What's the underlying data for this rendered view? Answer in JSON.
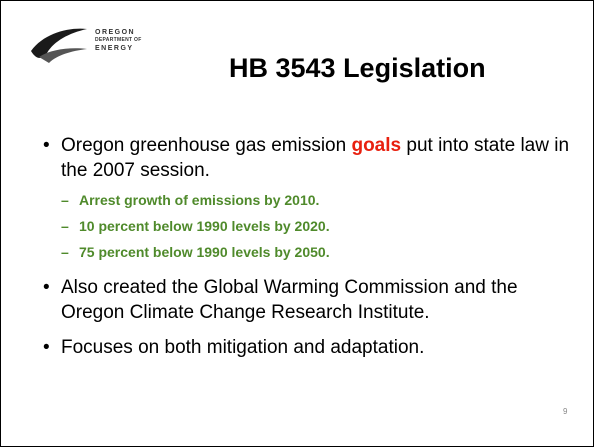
{
  "logo": {
    "lines": [
      "OREGON",
      "DEPARTMENT OF",
      "ENERGY"
    ]
  },
  "title": "HB 3543 Legislation",
  "bullets": [
    {
      "parts": [
        "Oregon greenhouse gas emission ",
        "goals",
        " put into state law in the 2007 session."
      ],
      "sub": [
        "Arrest growth of emissions by 2010.",
        "10 percent below 1990 levels by 2020.",
        "75 percent below 1990 levels by 2050."
      ]
    },
    {
      "text": "Also created the Global Warming Commission and the Oregon Climate Change Research Institute."
    },
    {
      "text": "Focuses on both mitigation and adaptation."
    }
  ],
  "page_number": "9"
}
